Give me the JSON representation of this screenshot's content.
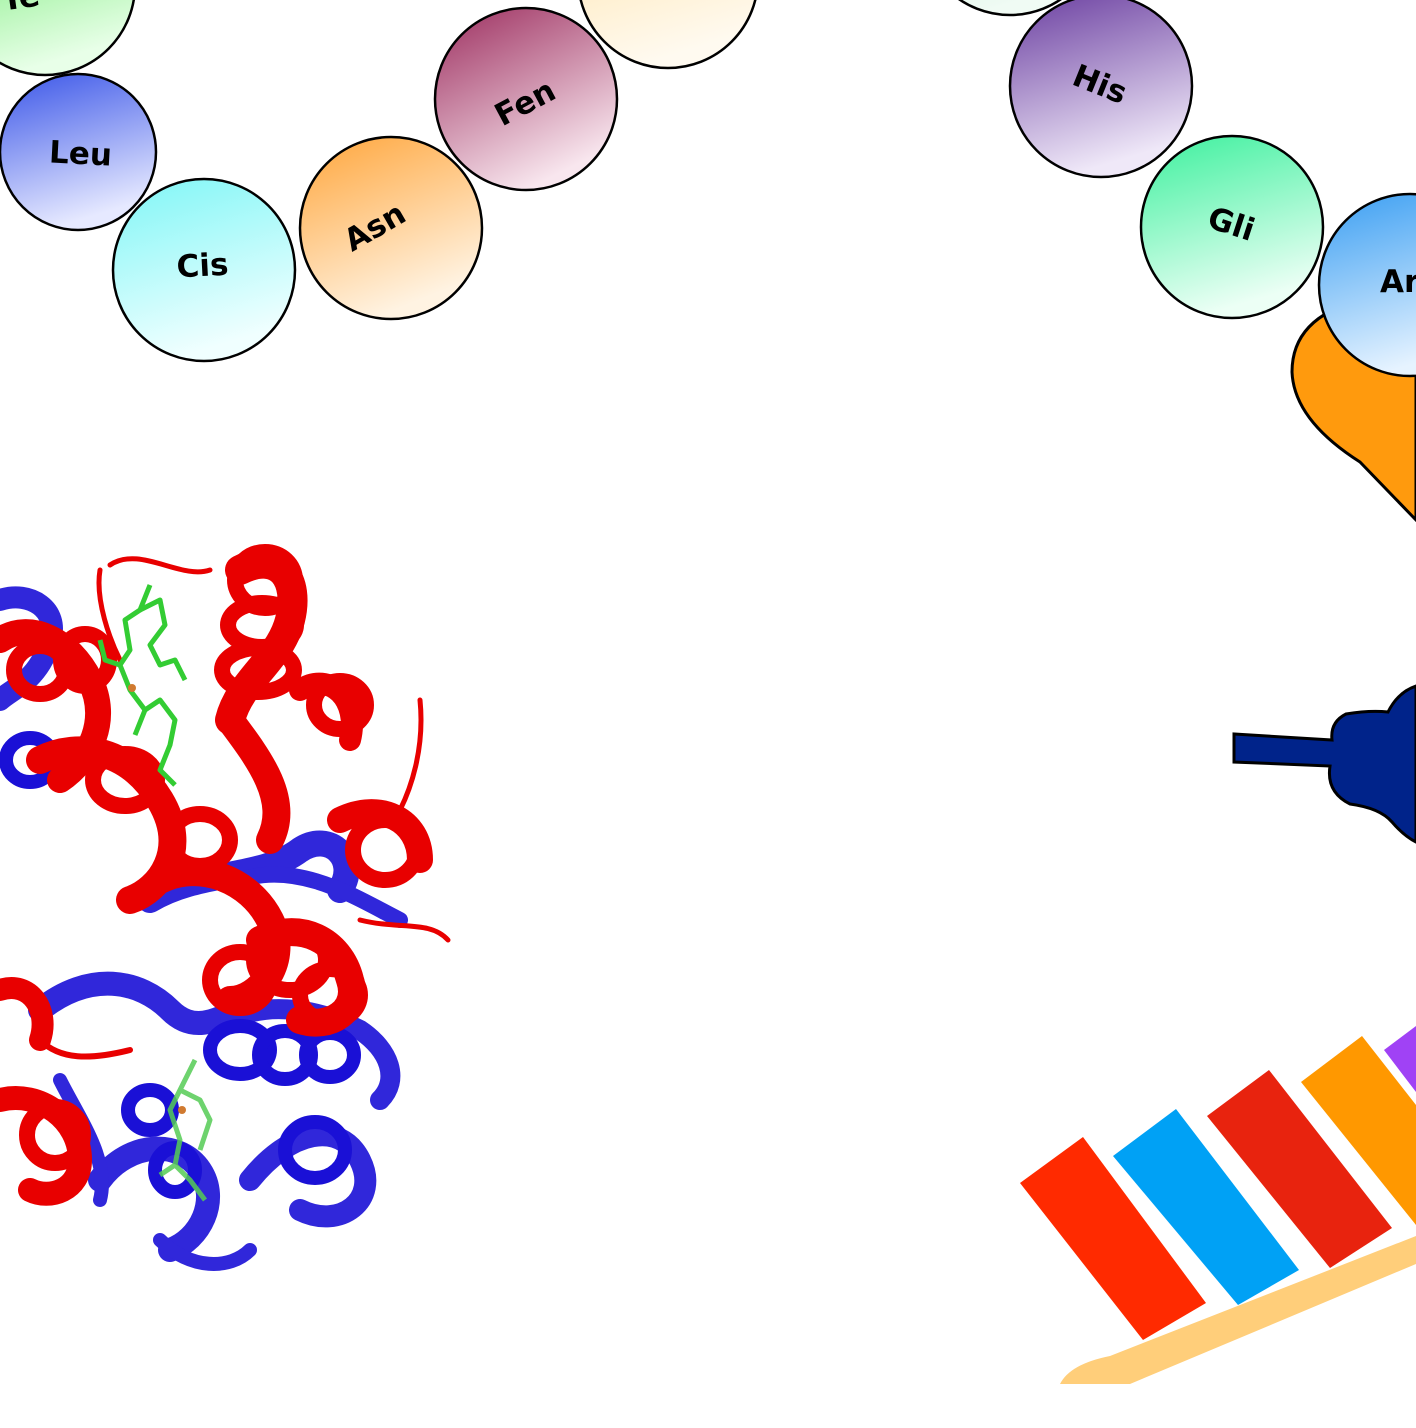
{
  "amino_acids": [
    {
      "id": "partial-top-left",
      "label": "Te",
      "color": "#5fe65f"
    },
    {
      "id": "leu",
      "label": "Leu",
      "color": "#3b56e8"
    },
    {
      "id": "cis",
      "label": "Cis",
      "color": "#7ff6f6"
    },
    {
      "id": "asn",
      "label": "Asn",
      "color": "#ffa53a"
    },
    {
      "id": "fen",
      "label": "Fen",
      "color": "#9c2d5e"
    },
    {
      "id": "partial-top-center",
      "label": "",
      "color": "#ffe2a6"
    },
    {
      "id": "partial-top-right",
      "label": "",
      "color": "#a9e3c3"
    },
    {
      "id": "his",
      "label": "His",
      "color": "#6a3ea0"
    },
    {
      "id": "gli",
      "label": "Gli",
      "color": "#3cf09d"
    },
    {
      "id": "arg-partial",
      "label": "Ar",
      "color": "#3a9ef2"
    }
  ],
  "ribosome_color": "#ff9a0d",
  "trna_color": "#00238a",
  "mrna_strip": {
    "backbone_color": "#ffce7a",
    "bases": [
      {
        "color": "#ff2a00"
      },
      {
        "color": "#00a1f5"
      },
      {
        "color": "#e8230e"
      },
      {
        "color": "#ff9800"
      },
      {
        "color": "#a042f5"
      }
    ]
  },
  "protein_structure": {
    "primary_color": "#e80000",
    "secondary_color": "#1a10d6",
    "ligand_color": "#33cc33"
  }
}
